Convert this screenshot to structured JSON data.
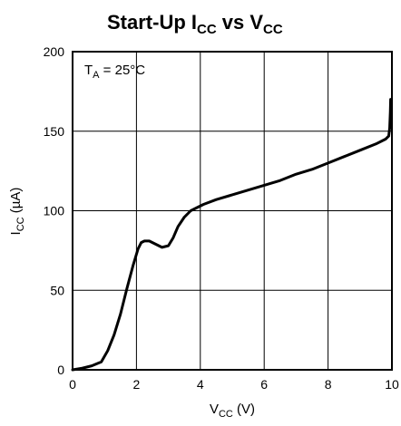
{
  "chart_data": {
    "type": "line",
    "title": {
      "main_1": "Start-Up I",
      "sub_1": "CC",
      "main_2": " vs V",
      "sub_2": "CC"
    },
    "xlabel": {
      "main": "V",
      "sub": "CC",
      "unit": " (V)"
    },
    "ylabel": {
      "main": "I",
      "sub": "CC",
      "unit": " (µA)"
    },
    "xlim": [
      0,
      10
    ],
    "ylim": [
      0,
      200
    ],
    "xticks": [
      "0",
      "2",
      "4",
      "6",
      "8",
      "10"
    ],
    "yticks": [
      "0",
      "50",
      "100",
      "150",
      "200"
    ],
    "grid": true,
    "annotation": {
      "main": "T",
      "sub": "A",
      "rest": " = 25°C"
    },
    "series": [
      {
        "x": [
          0,
          0.3,
          0.6,
          0.9,
          1.1,
          1.3,
          1.5,
          1.7,
          1.9,
          2.05,
          2.15,
          2.25,
          2.4,
          2.6,
          2.8,
          3.0,
          3.15,
          3.3,
          3.5,
          3.7,
          3.9,
          4.1,
          4.5,
          5.0,
          5.5,
          6.0,
          6.5,
          7.0,
          7.5,
          8.0,
          8.5,
          9.0,
          9.5,
          9.8,
          9.9,
          9.93,
          9.95,
          9.96
        ],
        "y": [
          0,
          1,
          2.5,
          5,
          12,
          22,
          35,
          51,
          66,
          76,
          80,
          81,
          81,
          79,
          77,
          78,
          83,
          90,
          96,
          100,
          102,
          104,
          107,
          110,
          113,
          116,
          119,
          123,
          126,
          130,
          134,
          138,
          142,
          145,
          147,
          152,
          162,
          170
        ]
      }
    ]
  }
}
